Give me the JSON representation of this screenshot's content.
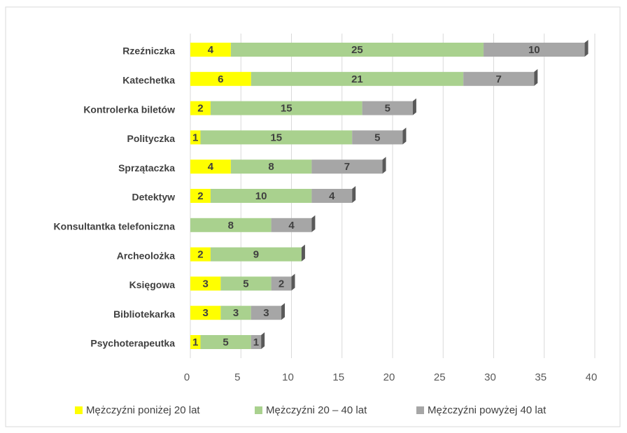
{
  "chart_data": {
    "type": "stacked_bar_horizontal",
    "categories": [
      "Rzeźniczka",
      "Katechetka",
      "Kontrolerka biletów",
      "Polityczka",
      "Sprzątaczka",
      "Detektyw",
      "Konsultantka telefoniczna",
      "Archeolożka",
      "Księgowa",
      "Bibliotekarka",
      "Psychoterapeutka"
    ],
    "series": [
      {
        "name": "Mężczyźni poniżej 20 lat",
        "color": "#ffff00",
        "values": [
          4,
          6,
          2,
          1,
          4,
          2,
          null,
          2,
          3,
          3,
          1
        ]
      },
      {
        "name": "Mężczyźni 20 – 40 lat",
        "color": "#a9d18e",
        "values": [
          25,
          21,
          15,
          15,
          8,
          10,
          8,
          9,
          5,
          3,
          5
        ]
      },
      {
        "name": "Mężczyźni powyżej 40 lat",
        "color": "#a6a6a6",
        "values": [
          10,
          7,
          5,
          5,
          7,
          4,
          4,
          null,
          2,
          3,
          1
        ]
      }
    ],
    "xlim": [
      0,
      40
    ],
    "xticks": [
      0,
      5,
      10,
      15,
      20,
      25,
      30,
      35,
      40
    ],
    "grid": true,
    "legend": "bottom"
  }
}
